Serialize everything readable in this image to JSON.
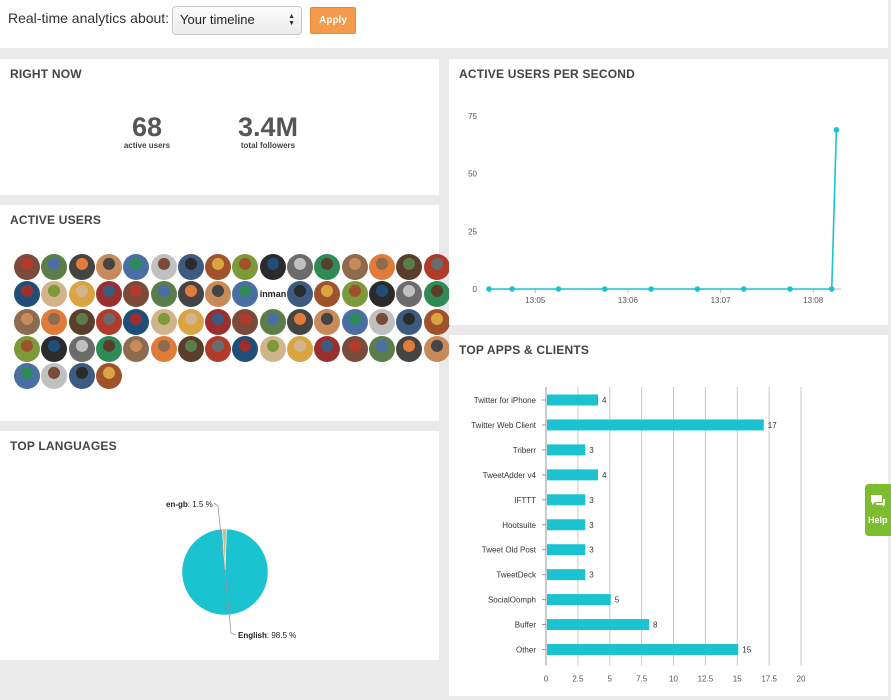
{
  "header": {
    "label": "Real-time analytics about:",
    "select_value": "Your timeline",
    "apply_label": "Apply"
  },
  "right_now": {
    "title": "RIGHT NOW",
    "active_users_value": "68",
    "active_users_label": "active users",
    "followers_value": "3.4M",
    "followers_label": "total followers"
  },
  "active_users": {
    "title": "ACTIVE USERS",
    "avatar_count": 68,
    "text_avatar": "inman"
  },
  "languages": {
    "title": "TOP LANGUAGES",
    "chart_data": {
      "type": "pie",
      "slices": [
        {
          "label": "English",
          "value": 98.5,
          "color": "#1bc3d1"
        },
        {
          "label": "en-gb",
          "value": 1.5,
          "color": "#d6b98a"
        }
      ],
      "label_en": "English",
      "value_en": ": 98.5 %",
      "label_gb": "en-gb",
      "value_gb": ": 1.5 %"
    }
  },
  "active_per_second": {
    "title": "ACTIVE USERS PER SECOND",
    "chart_data": {
      "type": "line",
      "x": [
        "13:04:30",
        "13:04:45",
        "13:05:15",
        "13:05:45",
        "13:06:15",
        "13:06:45",
        "13:07:15",
        "13:07:45",
        "13:08:12",
        "13:08:15"
      ],
      "values": [
        0,
        0,
        0,
        0,
        0,
        0,
        0,
        0,
        0,
        69
      ],
      "xticks": [
        "13:05",
        "13:06",
        "13:07",
        "13:08"
      ],
      "yticks": [
        0,
        25,
        50,
        75
      ],
      "ylim": [
        0,
        75
      ],
      "color": "#1bc3d1"
    }
  },
  "apps": {
    "title": "TOP APPS & CLIENTS",
    "chart_data": {
      "type": "bar",
      "orientation": "horizontal",
      "categories": [
        "Twitter for iPhone",
        "Twitter Web Client",
        "Triberr",
        "TweetAdder v4",
        "IFTTT",
        "Hootsuite",
        "Tweet Old Post",
        "TweetDeck",
        "SocialOomph",
        "Buffer",
        "Other"
      ],
      "values": [
        4,
        17,
        3,
        4,
        3,
        3,
        3,
        3,
        5,
        8,
        15
      ],
      "xticks": [
        "0",
        "2.5",
        "5",
        "7.5",
        "10",
        "12.5",
        "15",
        "17.5",
        "20"
      ],
      "xlim": [
        0,
        20
      ],
      "color": "#1bc3d1"
    }
  },
  "help": {
    "label": "Help"
  }
}
